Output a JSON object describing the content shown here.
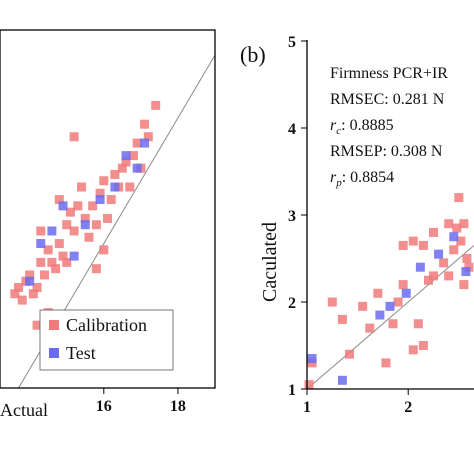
{
  "colors": {
    "calibration": "#f07a7a",
    "test": "#6b6bf0",
    "fit_line": "#8a8a8a",
    "axis": "#000000"
  },
  "chart_data": [
    {
      "type": "scatter",
      "panel_label": "",
      "xlabel": "Actual",
      "ylabel": "",
      "xlim": [
        13.2,
        19.0
      ],
      "ylim": [
        13.7,
        19.4
      ],
      "xticks": [
        16,
        18
      ],
      "tick_labels": [
        "16",
        "18"
      ],
      "reference_line": "y = x",
      "legend": {
        "position": "bottom-right",
        "entries": [
          "Calibration",
          "Test"
        ]
      },
      "series": [
        {
          "name": "Calibration",
          "points": [
            [
              13.6,
              15.2
            ],
            [
              13.7,
              15.3
            ],
            [
              13.8,
              15.1
            ],
            [
              13.9,
              15.4
            ],
            [
              14.0,
              15.5
            ],
            [
              14.1,
              15.2
            ],
            [
              14.2,
              15.3
            ],
            [
              14.3,
              15.7
            ],
            [
              14.4,
              15.5
            ],
            [
              14.5,
              15.9
            ],
            [
              14.6,
              15.7
            ],
            [
              14.7,
              15.6
            ],
            [
              14.8,
              16.0
            ],
            [
              14.9,
              15.8
            ],
            [
              15.0,
              16.3
            ],
            [
              15.1,
              16.5
            ],
            [
              15.2,
              16.2
            ],
            [
              15.3,
              16.6
            ],
            [
              15.4,
              16.9
            ],
            [
              15.5,
              16.4
            ],
            [
              15.6,
              16.1
            ],
            [
              15.7,
              16.6
            ],
            [
              15.8,
              16.3
            ],
            [
              15.9,
              16.8
            ],
            [
              16.0,
              17.0
            ],
            [
              16.1,
              16.4
            ],
            [
              16.2,
              16.7
            ],
            [
              16.3,
              17.1
            ],
            [
              16.4,
              16.9
            ],
            [
              16.5,
              17.2
            ],
            [
              16.6,
              17.3
            ],
            [
              16.7,
              16.9
            ],
            [
              16.8,
              17.4
            ],
            [
              16.9,
              17.6
            ],
            [
              17.0,
              17.2
            ],
            [
              17.1,
              17.9
            ],
            [
              17.2,
              17.7
            ],
            [
              17.4,
              18.2
            ],
            [
              14.2,
              14.7
            ],
            [
              14.5,
              14.9
            ],
            [
              15.0,
              15.7
            ],
            [
              15.2,
              17.7
            ],
            [
              15.8,
              15.6
            ],
            [
              16.0,
              15.9
            ],
            [
              14.3,
              16.2
            ],
            [
              14.8,
              16.7
            ]
          ]
        },
        {
          "name": "Test",
          "points": [
            [
              14.0,
              15.4
            ],
            [
              14.3,
              16.0
            ],
            [
              14.6,
              16.2
            ],
            [
              14.9,
              16.6
            ],
            [
              15.2,
              15.8
            ],
            [
              15.5,
              16.3
            ],
            [
              15.9,
              16.7
            ],
            [
              16.3,
              16.9
            ],
            [
              16.6,
              17.4
            ],
            [
              16.9,
              17.2
            ],
            [
              17.1,
              17.6
            ]
          ]
        }
      ]
    },
    {
      "type": "scatter",
      "panel_label": "(b)",
      "xlabel": "",
      "ylabel": "Caculated",
      "xlim": [
        1,
        2.65
      ],
      "ylim": [
        1,
        5
      ],
      "yticks": [
        1,
        2,
        3,
        4,
        5
      ],
      "xticks": [
        1,
        2
      ],
      "reference_line": "y = x",
      "annotations": [
        "Firmness PCR+IR",
        "RMSEC: 0.281 N",
        ": 0.8885",
        "RMSEP: 0.308 N",
        ": 0.8854"
      ],
      "annotation_symbols": [
        {
          "base": "r",
          "sub": "c"
        },
        {
          "base": "r",
          "sub": "p"
        }
      ],
      "series": [
        {
          "name": "Calibration",
          "points": [
            [
              1.02,
              1.05
            ],
            [
              1.05,
              1.3
            ],
            [
              1.25,
              2.0
            ],
            [
              1.35,
              1.8
            ],
            [
              1.42,
              1.4
            ],
            [
              1.55,
              1.95
            ],
            [
              1.62,
              1.7
            ],
            [
              1.7,
              2.1
            ],
            [
              1.78,
              1.3
            ],
            [
              1.85,
              1.75
            ],
            [
              1.9,
              2.0
            ],
            [
              1.95,
              2.2
            ],
            [
              2.05,
              1.45
            ],
            [
              2.1,
              1.75
            ],
            [
              2.15,
              1.5
            ],
            [
              2.2,
              2.25
            ],
            [
              2.25,
              2.3
            ],
            [
              1.95,
              2.65
            ],
            [
              2.05,
              2.7
            ],
            [
              2.15,
              2.65
            ],
            [
              2.25,
              2.8
            ],
            [
              2.35,
              2.45
            ],
            [
              2.4,
              2.9
            ],
            [
              2.45,
              2.6
            ],
            [
              2.48,
              2.85
            ],
            [
              2.5,
              3.2
            ],
            [
              2.52,
              2.7
            ],
            [
              2.55,
              2.9
            ],
            [
              2.58,
              2.5
            ],
            [
              2.6,
              2.4
            ],
            [
              2.55,
              2.2
            ],
            [
              2.4,
              2.3
            ]
          ]
        },
        {
          "name": "Test",
          "points": [
            [
              1.05,
              1.35
            ],
            [
              1.35,
              1.1
            ],
            [
              1.72,
              1.85
            ],
            [
              1.82,
              1.95
            ],
            [
              1.98,
              2.1
            ],
            [
              2.12,
              2.4
            ],
            [
              2.3,
              2.55
            ],
            [
              2.45,
              2.75
            ],
            [
              2.57,
              2.35
            ]
          ]
        }
      ]
    }
  ]
}
